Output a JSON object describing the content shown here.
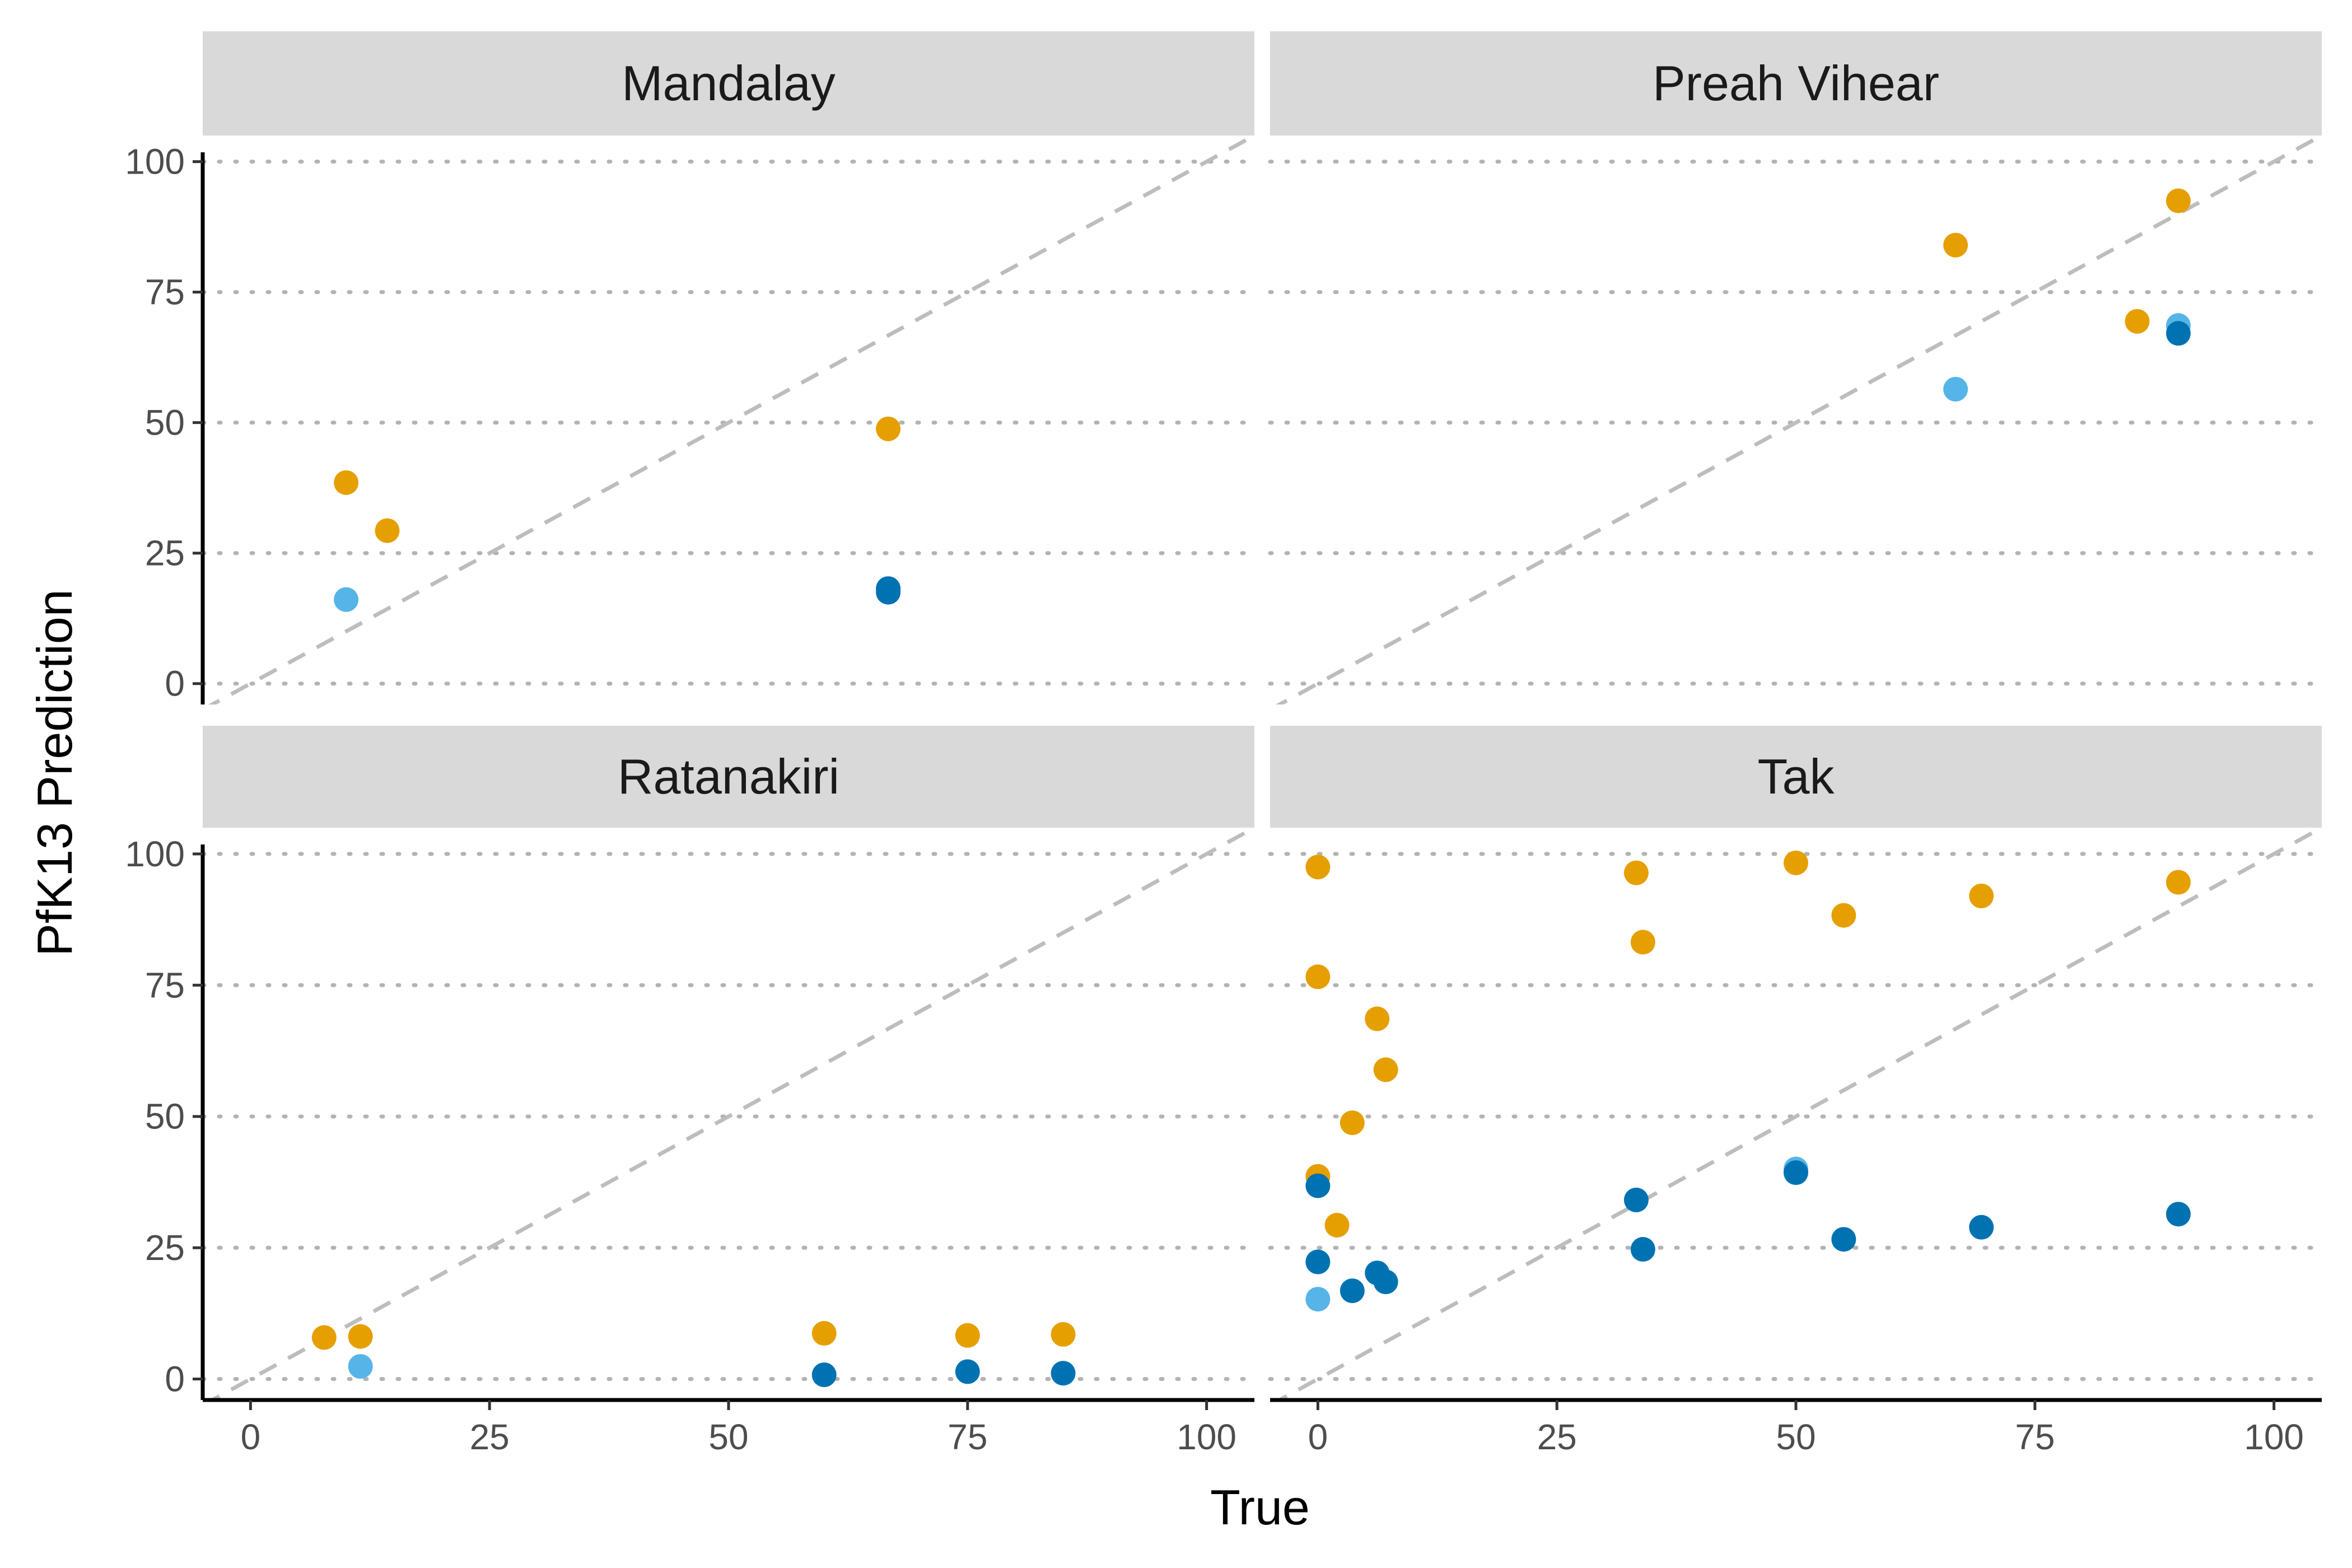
{
  "chart_data": {
    "type": "scatter",
    "xlabel": "True",
    "ylabel": "PfK13 Prediction",
    "xlim": [
      -5,
      105
    ],
    "ylim": [
      -4,
      105
    ],
    "x_ticks": [
      "0",
      "25",
      "50",
      "75",
      "100"
    ],
    "y_ticks": [
      "0",
      "25",
      "50",
      "75",
      "100"
    ],
    "grid": "horizontal dotted",
    "reference_line": "y = x, dashed",
    "colors": {
      "orange": "#E69F00",
      "dark_blue": "#0072B2",
      "light_blue": "#56B4E9"
    },
    "facets": [
      {
        "title": "Mandalay",
        "points": [
          {
            "x": 10,
            "y": 38.5,
            "color": "orange"
          },
          {
            "x": 14.3,
            "y": 29.3,
            "color": "orange"
          },
          {
            "x": 66.7,
            "y": 48.8,
            "color": "orange"
          },
          {
            "x": 10,
            "y": 16.1,
            "color": "light_blue"
          },
          {
            "x": 66.7,
            "y": 18.2,
            "color": "dark_blue"
          },
          {
            "x": 66.7,
            "y": 17.5,
            "color": "dark_blue"
          }
        ]
      },
      {
        "title": "Preah Vihear",
        "points": [
          {
            "x": 66.7,
            "y": 84,
            "color": "orange"
          },
          {
            "x": 90,
            "y": 92.5,
            "color": "orange"
          },
          {
            "x": 85.7,
            "y": 69.4,
            "color": "orange"
          },
          {
            "x": 66.7,
            "y": 56.4,
            "color": "light_blue"
          },
          {
            "x": 90,
            "y": 68.6,
            "color": "light_blue"
          },
          {
            "x": 90,
            "y": 67.1,
            "color": "dark_blue"
          }
        ]
      },
      {
        "title": "Ratanakiri",
        "points": [
          {
            "x": 7.7,
            "y": 7.9,
            "color": "orange"
          },
          {
            "x": 11.5,
            "y": 8.1,
            "color": "orange"
          },
          {
            "x": 60,
            "y": 8.7,
            "color": "orange"
          },
          {
            "x": 75,
            "y": 8.3,
            "color": "orange"
          },
          {
            "x": 85,
            "y": 8.5,
            "color": "orange"
          },
          {
            "x": 11.5,
            "y": 2.4,
            "color": "light_blue"
          },
          {
            "x": 60,
            "y": 0.8,
            "color": "dark_blue"
          },
          {
            "x": 75,
            "y": 1.4,
            "color": "dark_blue"
          },
          {
            "x": 85,
            "y": 1.1,
            "color": "dark_blue"
          }
        ]
      },
      {
        "title": "Tak",
        "points": [
          {
            "x": 0,
            "y": 97.5,
            "color": "orange"
          },
          {
            "x": 0,
            "y": 76.6,
            "color": "orange"
          },
          {
            "x": 0,
            "y": 38.6,
            "color": "orange"
          },
          {
            "x": 2,
            "y": 29.3,
            "color": "orange"
          },
          {
            "x": 3.6,
            "y": 48.8,
            "color": "orange"
          },
          {
            "x": 6.2,
            "y": 68.6,
            "color": "orange"
          },
          {
            "x": 7.1,
            "y": 58.9,
            "color": "orange"
          },
          {
            "x": 33.3,
            "y": 96.4,
            "color": "orange"
          },
          {
            "x": 34,
            "y": 83.2,
            "color": "orange"
          },
          {
            "x": 50,
            "y": 98.3,
            "color": "orange"
          },
          {
            "x": 55,
            "y": 88.3,
            "color": "orange"
          },
          {
            "x": 69.4,
            "y": 92,
            "color": "orange"
          },
          {
            "x": 90,
            "y": 94.6,
            "color": "orange"
          },
          {
            "x": 0,
            "y": 15.2,
            "color": "light_blue"
          },
          {
            "x": 50,
            "y": 40,
            "color": "light_blue"
          },
          {
            "x": 0,
            "y": 36.8,
            "color": "dark_blue"
          },
          {
            "x": 0,
            "y": 22.3,
            "color": "dark_blue"
          },
          {
            "x": 3.6,
            "y": 16.8,
            "color": "dark_blue"
          },
          {
            "x": 6.2,
            "y": 20.2,
            "color": "dark_blue"
          },
          {
            "x": 7.1,
            "y": 18.5,
            "color": "dark_blue"
          },
          {
            "x": 33.3,
            "y": 34.1,
            "color": "dark_blue"
          },
          {
            "x": 34,
            "y": 24.7,
            "color": "dark_blue"
          },
          {
            "x": 50,
            "y": 39.3,
            "color": "dark_blue"
          },
          {
            "x": 55,
            "y": 26.6,
            "color": "dark_blue"
          },
          {
            "x": 69.4,
            "y": 28.9,
            "color": "dark_blue"
          },
          {
            "x": 90,
            "y": 31.4,
            "color": "dark_blue"
          }
        ]
      }
    ]
  }
}
